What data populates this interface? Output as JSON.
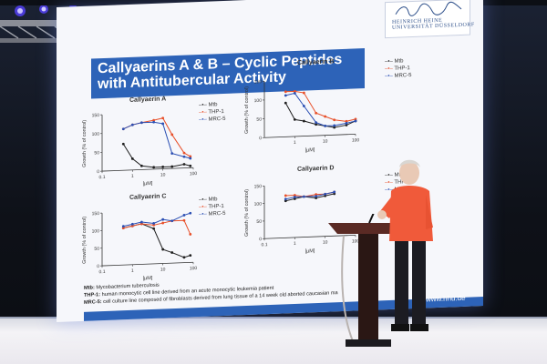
{
  "slide": {
    "title": "Callyaerins A & B – Cyclic Peptides with Antitubercular Activity",
    "logo_text": "HEINRICH HEINE UNIVERSITÄT DÜSSELDORF",
    "url": "www.hhu.de",
    "footnotes": [
      {
        "abbr": "Mtb:",
        "text": "Mycobacterium tuberculosis"
      },
      {
        "abbr": "THP-1:",
        "text": "human monocytic cell line derived from an acute monocytic leukemia patient"
      },
      {
        "abbr": "MRC-5:",
        "text": "cell culture line composed of fibroblasts derived from lung tissue of a 14 week old aborted caucasian ma"
      }
    ]
  },
  "colors": {
    "mtb": "#1f1f1f",
    "thp1": "#e8502a",
    "mrc5": "#2b4fb3",
    "slide_accent": "#2d63b8"
  },
  "chart_data": [
    {
      "type": "line",
      "title": "Callyaerin A",
      "xlabel": "[µM]",
      "ylabel": "Growth (% of control)",
      "xscale": "log",
      "xlim": [
        0.1,
        100
      ],
      "ylim": [
        0,
        150
      ],
      "xticks": [
        "0.1",
        "1",
        "10",
        "100"
      ],
      "yticks": [
        "0",
        "50",
        "100",
        "150"
      ],
      "legend_position": "top-right",
      "series": [
        {
          "name": "Mtb",
          "x": [
            0.5,
            1,
            2,
            5,
            10,
            20,
            50,
            80
          ],
          "y": [
            70,
            30,
            10,
            5,
            5,
            5,
            10,
            5
          ]
        },
        {
          "name": "THP-1",
          "x": [
            0.5,
            1,
            2,
            5,
            10,
            20,
            50,
            80
          ],
          "y": [
            110,
            120,
            125,
            130,
            135,
            90,
            40,
            30
          ]
        },
        {
          "name": "MRC-5",
          "x": [
            0.5,
            1,
            2,
            5,
            10,
            20,
            50,
            80
          ],
          "y": [
            110,
            120,
            125,
            125,
            120,
            40,
            30,
            25
          ]
        }
      ]
    },
    {
      "type": "line",
      "title": "Callyaerin B",
      "xlabel": "[µM]",
      "ylabel": "Growth (% of control)",
      "xscale": "log",
      "xlim": [
        0.1,
        100
      ],
      "ylim": [
        0,
        150
      ],
      "xticks": [
        "1",
        "10",
        "100"
      ],
      "yticks": [
        "0",
        "50",
        "100",
        "150"
      ],
      "legend_position": "top-right",
      "series": [
        {
          "name": "Mtb",
          "x": [
            0.5,
            1,
            2,
            5,
            10,
            20,
            50,
            100
          ],
          "y": [
            90,
            45,
            40,
            30,
            25,
            20,
            25,
            35
          ]
        },
        {
          "name": "THP-1",
          "x": [
            0.5,
            1,
            2,
            5,
            10,
            20,
            50,
            100
          ],
          "y": [
            120,
            120,
            115,
            60,
            50,
            40,
            35,
            40
          ]
        },
        {
          "name": "MRC-5",
          "x": [
            0.5,
            1,
            2,
            5,
            10,
            20,
            50,
            100
          ],
          "y": [
            110,
            115,
            80,
            35,
            25,
            25,
            30,
            35
          ]
        }
      ]
    },
    {
      "type": "line",
      "title": "Callyaerin C",
      "xlabel": "[µM]",
      "ylabel": "Growth (% of control)",
      "xscale": "log",
      "xlim": [
        0.1,
        100
      ],
      "ylim": [
        0,
        150
      ],
      "xticks": [
        "0.1",
        "1",
        "10",
        "100"
      ],
      "yticks": [
        "0",
        "50",
        "100",
        "150"
      ],
      "legend_position": "top-right",
      "series": [
        {
          "name": "Mtb",
          "x": [
            0.5,
            1,
            2,
            5,
            10,
            20,
            50,
            80
          ],
          "y": [
            105,
            110,
            115,
            100,
            40,
            30,
            15,
            20
          ]
        },
        {
          "name": "THP-1",
          "x": [
            0.5,
            1,
            2,
            5,
            10,
            20,
            50,
            80
          ],
          "y": [
            105,
            110,
            115,
            110,
            115,
            120,
            120,
            80
          ]
        },
        {
          "name": "MRC-5",
          "x": [
            0.5,
            1,
            2,
            5,
            10,
            20,
            50,
            80
          ],
          "y": [
            110,
            115,
            120,
            115,
            125,
            120,
            135,
            140
          ]
        }
      ]
    },
    {
      "type": "line",
      "title": "Callyaerin D",
      "xlabel": "[µM]",
      "ylabel": "Growth (% of control)",
      "xscale": "log",
      "xlim": [
        0.1,
        100
      ],
      "ylim": [
        0,
        150
      ],
      "xticks": [
        "0.1",
        "1",
        "10",
        "100"
      ],
      "yticks": [
        "0",
        "50",
        "100",
        "150"
      ],
      "legend_position": "top-right",
      "series": [
        {
          "name": "Mtb",
          "x": [
            0.5,
            1,
            2,
            5,
            10,
            20
          ],
          "y": [
            105,
            110,
            115,
            110,
            115,
            120
          ]
        },
        {
          "name": "THP-1",
          "x": [
            0.5,
            1,
            2,
            5,
            10,
            20
          ],
          "y": [
            120,
            120,
            115,
            120,
            120,
            125
          ]
        },
        {
          "name": "MRC-5",
          "x": [
            0.5,
            1,
            2,
            5,
            10,
            20
          ],
          "y": [
            110,
            115,
            115,
            115,
            120,
            125
          ]
        }
      ]
    }
  ]
}
